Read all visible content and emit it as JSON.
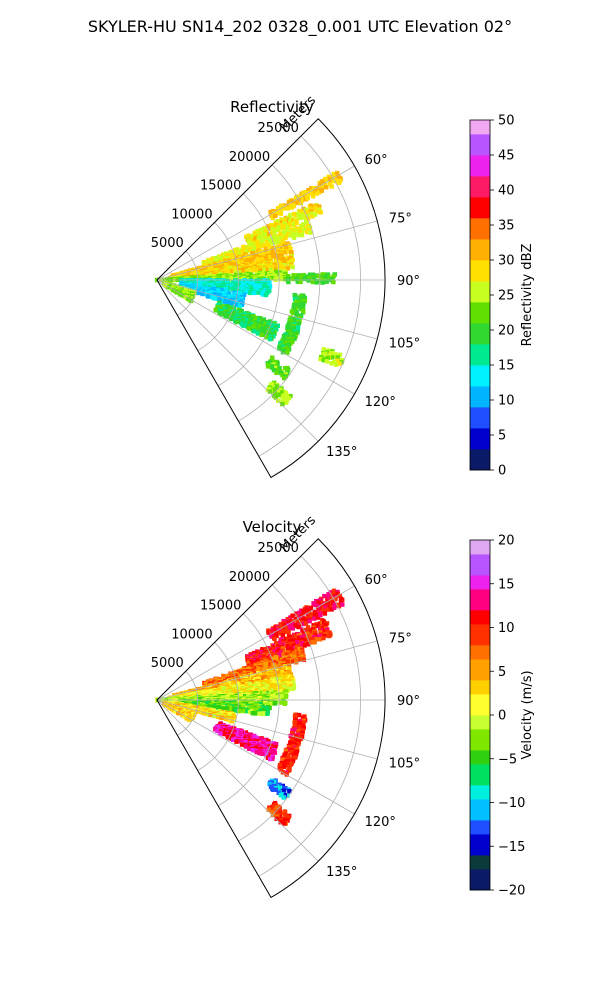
{
  "figure_title": "SKYLER-HU  SN14_202  0328_0.001 UTC Elevation 02°",
  "chart_data": [
    {
      "type": "heatmap",
      "subtype": "polar-sector",
      "title": "Reflectivity",
      "radial_label": "Meters",
      "radial_ticks": [
        5000,
        10000,
        15000,
        20000,
        25000
      ],
      "radial_tick_labels": [
        "5000",
        "10000",
        "15000",
        "20000",
        "25000"
      ],
      "rmax": 28000,
      "azimuth_range": [
        45,
        150
      ],
      "azimuth_ticks": [
        60,
        75,
        90,
        105,
        120,
        135
      ],
      "azimuth_tick_labels": [
        "60°",
        "75°",
        "90°",
        "105°",
        "120°",
        "135°"
      ],
      "grid": true,
      "colorbar": {
        "label": "Reflectivity dBZ",
        "vmin": 0,
        "vmax": 50,
        "ticks": [
          0,
          5,
          10,
          15,
          20,
          25,
          30,
          35,
          40,
          45,
          50
        ],
        "tick_labels": [
          "0",
          "5",
          "10",
          "15",
          "20",
          "25",
          "30",
          "35",
          "40",
          "45",
          "50"
        ]
      },
      "features": [
        {
          "az": [
            59,
            62
          ],
          "r": [
            16000,
            26000
          ],
          "value": 30
        },
        {
          "az": [
            64,
            68
          ],
          "r": [
            12000,
            22000
          ],
          "value": 28
        },
        {
          "az": [
            69,
            73
          ],
          "r": [
            6000,
            20000
          ],
          "value": 27
        },
        {
          "az": [
            74,
            79
          ],
          "r": [
            2000,
            17000
          ],
          "value": 30
        },
        {
          "az": [
            80,
            85
          ],
          "r": [
            1500,
            17000
          ],
          "value": 29
        },
        {
          "az": [
            86,
            90
          ],
          "r": [
            0,
            16000
          ],
          "value": 24
        },
        {
          "az": [
            88,
            91
          ],
          "r": [
            16000,
            22000
          ],
          "value": 21
        },
        {
          "az": [
            90,
            98
          ],
          "r": [
            3000,
            14000
          ],
          "value": 15
        },
        {
          "az": [
            99,
            108
          ],
          "r": [
            3000,
            11000
          ],
          "value": 12
        },
        {
          "az": [
            108,
            122
          ],
          "r": [
            1000,
            5000
          ],
          "value": 24
        },
        {
          "az": [
            96,
            120
          ],
          "r": [
            17000,
            18500
          ],
          "value": 20
        },
        {
          "az": [
            110,
            118
          ],
          "r": [
            8000,
            16000
          ],
          "value": 19
        },
        {
          "az": [
            112,
            116
          ],
          "r": [
            22000,
            25000
          ],
          "value": 25
        },
        {
          "az": [
            124,
            128
          ],
          "r": [
            17000,
            20000
          ],
          "value": 22
        },
        {
          "az": [
            131,
            135
          ],
          "r": [
            19000,
            22000
          ],
          "value": 24
        }
      ]
    },
    {
      "type": "heatmap",
      "subtype": "polar-sector",
      "title": "Velocity",
      "radial_label": "Meters",
      "radial_ticks": [
        5000,
        10000,
        15000,
        20000,
        25000
      ],
      "radial_tick_labels": [
        "5000",
        "10000",
        "15000",
        "20000",
        "25000"
      ],
      "rmax": 28000,
      "azimuth_range": [
        45,
        150
      ],
      "azimuth_ticks": [
        60,
        75,
        90,
        105,
        120,
        135
      ],
      "azimuth_tick_labels": [
        "60°",
        "75°",
        "90°",
        "105°",
        "120°",
        "135°"
      ],
      "grid": true,
      "colorbar": {
        "label": "Velocity (m/s)",
        "vmin": -20,
        "vmax": 20,
        "ticks": [
          -20,
          -15,
          -10,
          -5,
          0,
          5,
          10,
          15,
          20
        ],
        "tick_labels": [
          "−20",
          "−15",
          "−10",
          "−5",
          "0",
          "5",
          "10",
          "15",
          "20"
        ]
      },
      "features": [
        {
          "az": [
            58,
            63
          ],
          "r": [
            16000,
            26000
          ],
          "value": 11
        },
        {
          "az": [
            64,
            70
          ],
          "r": [
            12000,
            23000
          ],
          "value": 10
        },
        {
          "az": [
            70,
            75
          ],
          "r": [
            6000,
            19000
          ],
          "value": 7
        },
        {
          "az": [
            75,
            80
          ],
          "r": [
            2000,
            17000
          ],
          "value": 4
        },
        {
          "az": [
            80,
            86
          ],
          "r": [
            1500,
            17000
          ],
          "value": 1
        },
        {
          "az": [
            86,
            92
          ],
          "r": [
            0,
            16000
          ],
          "value": -2
        },
        {
          "az": [
            92,
            98
          ],
          "r": [
            3000,
            14000
          ],
          "value": -4
        },
        {
          "az": [
            100,
            106
          ],
          "r": [
            2000,
            10000
          ],
          "value": 2
        },
        {
          "az": [
            108,
            122
          ],
          "r": [
            1000,
            5000
          ],
          "value": 3
        },
        {
          "az": [
            96,
            120
          ],
          "r": [
            17000,
            18500
          ],
          "value": 10
        },
        {
          "az": [
            110,
            118
          ],
          "r": [
            8000,
            16000
          ],
          "value": 13
        },
        {
          "az": [
            124,
            128
          ],
          "r": [
            17000,
            20000
          ],
          "value": -12
        },
        {
          "az": [
            131,
            135
          ],
          "r": [
            19000,
            22000
          ],
          "value": 9
        }
      ]
    }
  ]
}
